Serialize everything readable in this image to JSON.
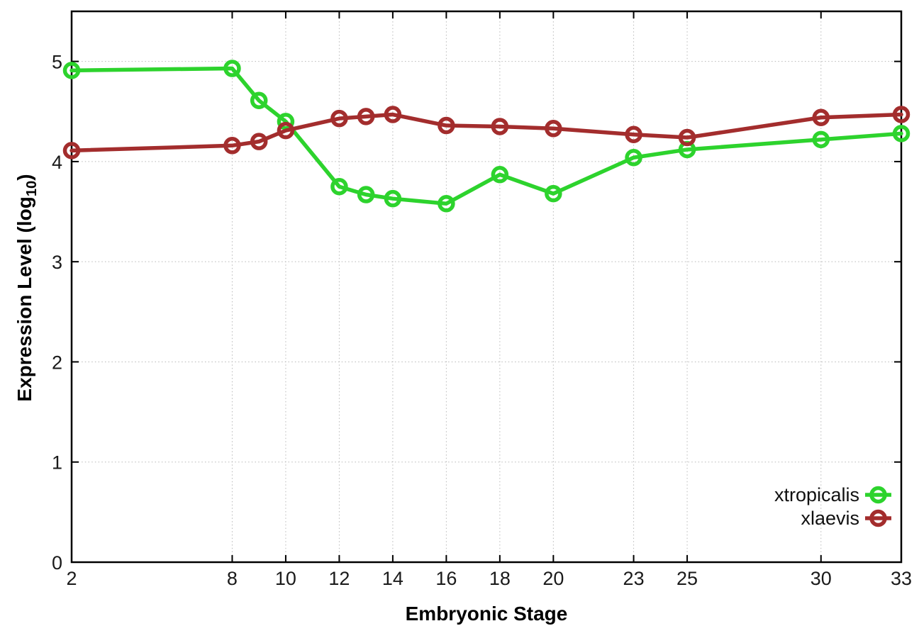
{
  "chart_data": {
    "type": "line",
    "title": "",
    "xlabel": "Embryonic Stage",
    "ylabel": "Expression Level (log10)",
    "ylabel_parts": {
      "prefix": "Expression Level (log",
      "sub": "10",
      "suffix": ")"
    },
    "xlim": [
      2,
      33
    ],
    "ylim": [
      0,
      5.5
    ],
    "grid": true,
    "x_ticks": [
      2,
      8,
      10,
      12,
      14,
      16,
      18,
      20,
      23,
      25,
      30,
      33
    ],
    "y_ticks": [
      0,
      1,
      2,
      3,
      4,
      5
    ],
    "x": [
      2,
      8,
      9,
      10,
      12,
      13,
      14,
      16,
      18,
      20,
      23,
      25,
      30,
      33
    ],
    "series": [
      {
        "name": "xtropicalis",
        "color": "#2dd32d",
        "values": [
          4.91,
          4.93,
          4.61,
          4.4,
          3.75,
          3.67,
          3.63,
          3.58,
          3.87,
          3.68,
          4.04,
          4.12,
          4.22,
          4.28
        ]
      },
      {
        "name": "xlaevis",
        "color": "#a32d2d",
        "values": [
          4.11,
          4.16,
          4.2,
          4.31,
          4.43,
          4.45,
          4.47,
          4.36,
          4.35,
          4.33,
          4.27,
          4.24,
          4.44,
          4.47
        ]
      }
    ],
    "legend": {
      "position": "bottom-right-inside",
      "entries": [
        "xtropicalis",
        "xlaevis"
      ]
    },
    "colors": {
      "border": "#000000",
      "grid": "#b8b8b8",
      "tick_text": "#1a1a1a"
    }
  }
}
